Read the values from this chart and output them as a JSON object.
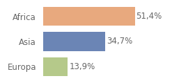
{
  "categories": [
    "Africa",
    "Asia",
    "Europa"
  ],
  "values": [
    51.4,
    34.7,
    13.9
  ],
  "labels": [
    "51,4%",
    "34,7%",
    "13,9%"
  ],
  "bar_colors": [
    "#e8a97e",
    "#6b85b5",
    "#b5c98a"
  ],
  "background_color": "#ffffff",
  "xlim": [
    0,
    72
  ],
  "bar_height": 0.75,
  "label_fontsize": 8.5,
  "ylabel_fontsize": 8.5,
  "figsize": [
    2.8,
    1.2
  ],
  "dpi": 100
}
